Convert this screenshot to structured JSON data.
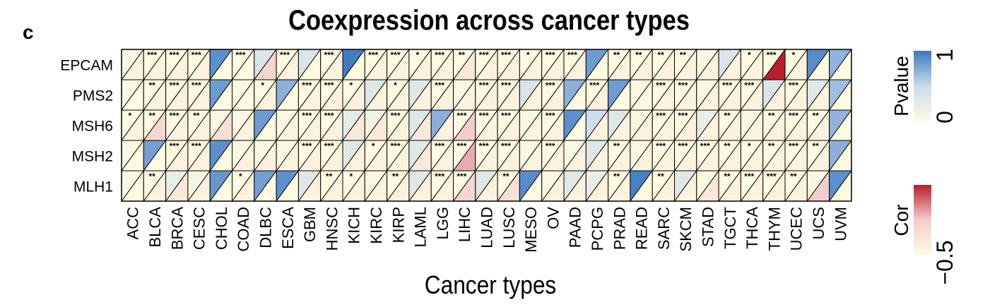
{
  "panel_label": "c",
  "chart_data": {
    "type": "heatmap",
    "title": "Coexpression across cancer types",
    "xlabel": "Cancer types",
    "ylabel": "",
    "rows": [
      "EPCAM",
      "PMS2",
      "MSH6",
      "MSH2",
      "MLH1"
    ],
    "columns": [
      "ACC",
      "BLCA",
      "BRCA",
      "CESC",
      "CHOL",
      "COAD",
      "DLBC",
      "ESCA",
      "GBM",
      "HNSC",
      "KICH",
      "KIRC",
      "KIRP",
      "LAML",
      "LGG",
      "LIHC",
      "LUAD",
      "LUSC",
      "MESO",
      "OV",
      "PAAD",
      "PCPG",
      "PRAD",
      "READ",
      "SARC",
      "SKCM",
      "STAD",
      "TGCT",
      "THCA",
      "THYM",
      "UCEC",
      "UCS",
      "UVM"
    ],
    "cell_encoding": "upper-left triangle = Pvalue, lower-right triangle = Cor",
    "pvalue": [
      [
        0.05,
        0.0,
        0.0,
        0.0,
        0.88,
        0.0,
        0.35,
        0.0,
        0.35,
        0.0,
        0.98,
        0.0,
        0.0,
        0.02,
        0.0,
        0.0,
        0.0,
        0.0,
        0.02,
        0.0,
        0.0,
        0.82,
        0.0,
        0.0,
        0.0,
        0.0,
        0.05,
        0.35,
        0.02,
        0.0,
        0.02,
        0.9,
        0.7
      ],
      [
        0.05,
        0.0,
        0.0,
        0.0,
        0.82,
        0.05,
        0.02,
        0.72,
        0.0,
        0.0,
        0.02,
        0.3,
        0.02,
        0.3,
        0.0,
        0.05,
        0.0,
        0.0,
        0.35,
        0.0,
        0.72,
        0.0,
        0.82,
        0.05,
        0.0,
        0.0,
        0.05,
        0.0,
        0.0,
        0.35,
        0.0,
        0.3,
        0.65
      ],
      [
        0.02,
        0.0,
        0.0,
        0.0,
        0.05,
        0.05,
        0.82,
        0.05,
        0.0,
        0.0,
        0.25,
        0.15,
        0.0,
        0.3,
        0.72,
        0.0,
        0.0,
        0.0,
        0.05,
        0.0,
        0.88,
        0.45,
        0.3,
        0.05,
        0.0,
        0.0,
        0.2,
        0.0,
        0.05,
        0.0,
        0.0,
        0.0,
        0.7
      ],
      [
        0.05,
        0.8,
        0.0,
        0.0,
        0.88,
        0.05,
        0.05,
        0.05,
        0.0,
        0.0,
        0.3,
        0.0,
        0.0,
        0.3,
        0.0,
        0.0,
        0.0,
        0.0,
        0.05,
        0.0,
        0.05,
        0.3,
        0.0,
        0.05,
        0.0,
        0.0,
        0.0,
        0.0,
        0.0,
        0.0,
        0.0,
        0.0,
        0.72
      ],
      [
        0.05,
        0.0,
        0.2,
        0.1,
        0.85,
        0.0,
        0.8,
        0.88,
        0.3,
        0.0,
        0.0,
        0.05,
        0.0,
        0.3,
        0.0,
        0.0,
        0.3,
        0.0,
        0.9,
        0.05,
        0.3,
        0.2,
        0.0,
        0.95,
        0.0,
        0.3,
        0.05,
        0.0,
        0.0,
        0.0,
        0.0,
        0.05,
        0.88
      ]
    ],
    "cor": [
      [
        -0.45,
        -0.45,
        -0.45,
        -0.45,
        -0.5,
        -0.5,
        -0.3,
        -0.45,
        -0.5,
        -0.45,
        -0.5,
        -0.45,
        -0.45,
        -0.45,
        -0.45,
        -0.4,
        -0.45,
        -0.45,
        -0.45,
        -0.45,
        -0.45,
        -0.5,
        -0.45,
        -0.45,
        -0.45,
        -0.45,
        -0.45,
        -0.45,
        -0.45,
        0.0,
        -0.45,
        -0.5,
        -0.5
      ],
      [
        -0.5,
        -0.45,
        -0.45,
        -0.45,
        -0.5,
        -0.5,
        -0.45,
        -0.5,
        -0.45,
        -0.45,
        -0.45,
        -0.45,
        -0.45,
        -0.45,
        -0.45,
        -0.45,
        -0.45,
        -0.45,
        -0.45,
        -0.45,
        -0.5,
        -0.45,
        -0.5,
        -0.5,
        -0.45,
        -0.45,
        -0.45,
        -0.45,
        -0.45,
        -0.45,
        -0.45,
        -0.45,
        -0.5
      ],
      [
        -0.45,
        -0.3,
        -0.45,
        -0.45,
        -0.35,
        -0.45,
        -0.5,
        -0.45,
        -0.45,
        -0.45,
        -0.4,
        -0.4,
        -0.45,
        -0.4,
        -0.45,
        -0.25,
        -0.45,
        -0.45,
        -0.45,
        -0.45,
        -0.5,
        -0.45,
        -0.45,
        -0.45,
        -0.45,
        -0.45,
        -0.45,
        -0.45,
        -0.45,
        -0.45,
        -0.45,
        -0.45,
        -0.5
      ],
      [
        -0.5,
        -0.5,
        -0.45,
        -0.45,
        -0.5,
        -0.45,
        -0.45,
        -0.45,
        -0.45,
        -0.45,
        -0.45,
        -0.45,
        -0.45,
        -0.4,
        -0.45,
        -0.2,
        -0.45,
        -0.45,
        -0.45,
        -0.45,
        -0.45,
        -0.45,
        -0.45,
        -0.45,
        -0.45,
        -0.45,
        -0.45,
        -0.45,
        -0.45,
        -0.45,
        -0.45,
        -0.45,
        -0.5
      ],
      [
        -0.5,
        -0.45,
        -0.4,
        -0.45,
        -0.5,
        -0.45,
        -0.5,
        -0.5,
        -0.45,
        -0.45,
        -0.45,
        -0.45,
        -0.45,
        -0.45,
        -0.45,
        -0.3,
        -0.45,
        -0.35,
        -0.5,
        -0.45,
        -0.45,
        -0.45,
        -0.45,
        -0.5,
        -0.45,
        -0.45,
        -0.4,
        -0.45,
        -0.45,
        -0.45,
        -0.45,
        -0.25,
        -0.5
      ]
    ],
    "stars": [
      [
        "",
        "***",
        "***",
        "***",
        "",
        "***",
        "",
        "***",
        "",
        "***",
        "",
        "***",
        "***",
        "*",
        "***",
        "**",
        "***",
        "***",
        "*",
        "***",
        "***",
        "",
        "**",
        "**",
        "**",
        "**",
        "",
        "",
        "*",
        "***",
        "*",
        "",
        ""
      ],
      [
        "",
        "**",
        "***",
        "***",
        "",
        "",
        "*",
        "",
        "***",
        "***",
        "*",
        "",
        "*",
        "",
        "***",
        "",
        "***",
        "***",
        "",
        "***",
        "",
        "***",
        "",
        "",
        "***",
        "***",
        "",
        "***",
        "***",
        "",
        "***",
        "",
        ""
      ],
      [
        "*",
        "**",
        "***",
        "**",
        "",
        "",
        "",
        "",
        "***",
        "***",
        "",
        "",
        "***",
        "",
        "",
        "***",
        "***",
        "***",
        "",
        "***",
        "",
        "",
        "",
        "",
        "***",
        "***",
        "",
        "**",
        "",
        "**",
        "***",
        "**",
        ""
      ],
      [
        "",
        "",
        "***",
        "***",
        "",
        "",
        "",
        "",
        "***",
        "***",
        "",
        "*",
        "***",
        "",
        "***",
        "***",
        "***",
        "***",
        "",
        "***",
        "",
        "",
        "**",
        "",
        "***",
        "***",
        "***",
        "**",
        "*",
        "**",
        "***",
        "**",
        ""
      ],
      [
        "",
        "**",
        "",
        "",
        "",
        "*",
        "",
        "",
        "",
        "**",
        "*",
        "",
        "**",
        "",
        "***",
        "***",
        "",
        "**",
        "",
        "",
        "",
        "",
        "**",
        "",
        "**",
        "",
        "",
        "**",
        "***",
        "***",
        "**",
        "",
        ""
      ]
    ],
    "legend": [
      {
        "label": "Pvalue",
        "min_label": "0",
        "max_label": "1",
        "colors": [
          "#FFFBE2",
          "#3A78C2"
        ]
      },
      {
        "label": "Cor",
        "min_label": "−0.5",
        "max_label": "",
        "colors": [
          "#FFFBE2",
          "#B81E2B"
        ]
      }
    ],
    "colors": {
      "pvalue_low": "#FFFBE2",
      "pvalue_mid": "#C9DCEB",
      "pvalue_high": "#3A78C2",
      "cor_low": "#FFFBE2",
      "cor_mid": "#F3CDCD",
      "cor_high": "#B81E2B",
      "border": "#000000"
    }
  }
}
